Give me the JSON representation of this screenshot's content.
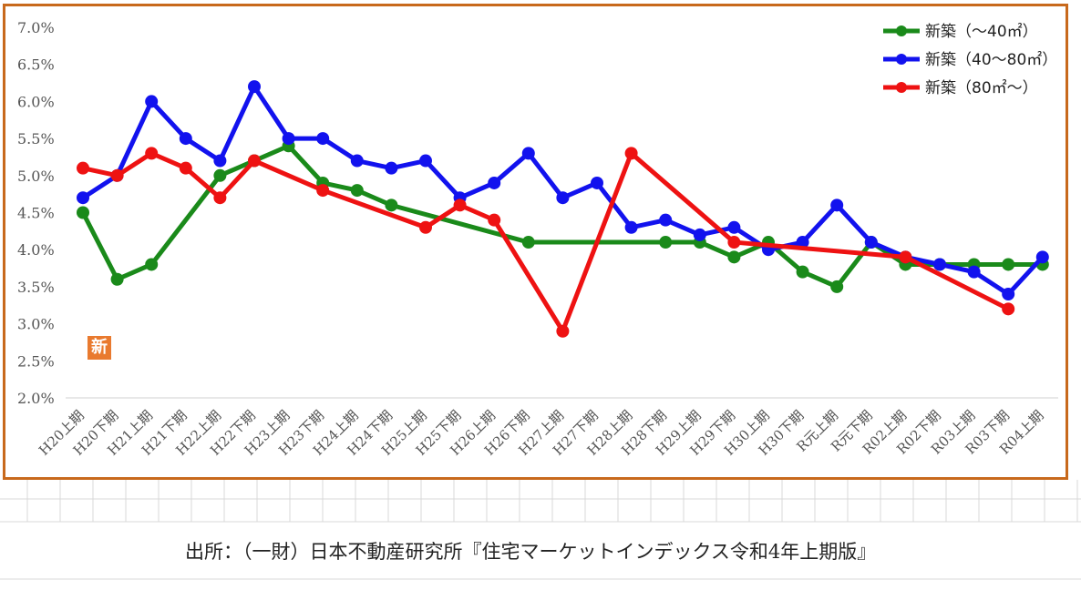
{
  "badge": "新",
  "source_text": "出所：（一財）日本不動産研究所『住宅マーケットインデックス令和4年上期版』",
  "chart_data": {
    "type": "line",
    "title": "",
    "xlabel": "",
    "ylabel": "",
    "ylim": [
      2.0,
      7.0
    ],
    "yticks": [
      "2.0%",
      "2.5%",
      "3.0%",
      "3.5%",
      "4.0%",
      "4.5%",
      "5.0%",
      "5.5%",
      "6.0%",
      "6.5%",
      "7.0%"
    ],
    "grid": false,
    "legend": "top-right",
    "categories": [
      "H20上期",
      "H20下期",
      "H21上期",
      "H21下期",
      "H22上期",
      "H22下期",
      "H23上期",
      "H23下期",
      "H24上期",
      "H24下期",
      "H25上期",
      "H25下期",
      "H26上期",
      "H26下期",
      "H27上期",
      "H27下期",
      "H28上期",
      "H28下期",
      "H29上期",
      "H29下期",
      "H30上期",
      "H30下期",
      "R元上期",
      "R元下期",
      "R02上期",
      "R02下期",
      "R03上期",
      "R03下期",
      "R04上期"
    ],
    "series": [
      {
        "name": "新築（～40㎡）",
        "color": "#1a8a1a",
        "values": [
          4.5,
          3.6,
          3.8,
          null,
          5.0,
          5.2,
          5.4,
          4.9,
          4.8,
          4.6,
          null,
          null,
          null,
          4.1,
          null,
          null,
          null,
          4.1,
          4.1,
          3.9,
          4.1,
          3.7,
          3.5,
          4.1,
          3.8,
          3.8,
          3.8,
          3.8,
          3.8
        ]
      },
      {
        "name": "新築（40～80㎡）",
        "color": "#1212ee",
        "values": [
          4.7,
          5.0,
          6.0,
          5.5,
          5.2,
          6.2,
          5.5,
          5.5,
          5.2,
          5.1,
          5.2,
          4.7,
          4.9,
          5.3,
          4.7,
          4.9,
          4.3,
          4.4,
          4.2,
          4.3,
          4.0,
          4.1,
          4.6,
          4.1,
          3.9,
          3.8,
          3.7,
          3.4,
          3.9
        ]
      },
      {
        "name": "新築（80㎡～）",
        "color": "#ee1212",
        "values": [
          5.1,
          5.0,
          5.3,
          5.1,
          4.7,
          5.2,
          null,
          4.8,
          null,
          null,
          4.3,
          4.6,
          4.4,
          null,
          2.9,
          null,
          5.3,
          null,
          null,
          4.1,
          null,
          null,
          null,
          null,
          3.9,
          null,
          null,
          3.2,
          null
        ]
      }
    ]
  }
}
